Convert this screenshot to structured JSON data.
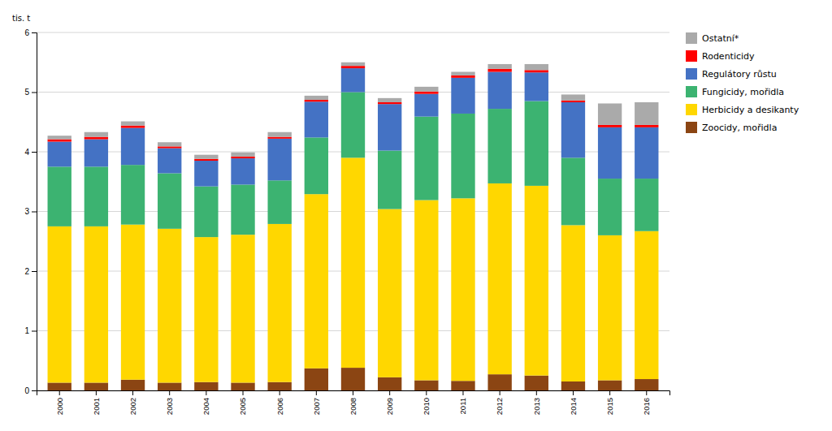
{
  "chart_data": {
    "type": "bar",
    "stacked": true,
    "ylabel": "tis. t",
    "categories": [
      "2000",
      "2001",
      "2002",
      "2003",
      "2004",
      "2005",
      "2006",
      "2007",
      "2008",
      "2009",
      "2010",
      "2011",
      "2012",
      "2013",
      "2014",
      "2015",
      "2016"
    ],
    "series": [
      {
        "name": "Zoocidy, mořidla",
        "color": "#8B4513",
        "values": [
          0.13,
          0.13,
          0.18,
          0.13,
          0.14,
          0.13,
          0.14,
          0.37,
          0.38,
          0.22,
          0.17,
          0.16,
          0.27,
          0.25,
          0.15,
          0.17,
          0.19
        ]
      },
      {
        "name": "Herbicidy a desikanty",
        "color": "#FFD700",
        "values": [
          2.62,
          2.62,
          2.6,
          2.58,
          2.43,
          2.48,
          2.65,
          2.92,
          3.52,
          2.82,
          3.02,
          3.06,
          3.2,
          3.18,
          2.62,
          2.43,
          2.48
        ]
      },
      {
        "name": "Fungicidy, mořidla",
        "color": "#3CB371",
        "values": [
          1.0,
          1.0,
          1.0,
          0.93,
          0.85,
          0.84,
          0.73,
          0.95,
          1.1,
          0.98,
          1.4,
          1.42,
          1.25,
          1.42,
          1.13,
          0.95,
          0.88
        ]
      },
      {
        "name": "Regulátory růstu",
        "color": "#4472C4",
        "values": [
          0.42,
          0.46,
          0.62,
          0.42,
          0.43,
          0.44,
          0.7,
          0.6,
          0.4,
          0.78,
          0.38,
          0.6,
          0.62,
          0.48,
          0.93,
          0.86,
          0.86
        ]
      },
      {
        "name": "Rodenticidy",
        "color": "#FF0000",
        "values": [
          0.04,
          0.04,
          0.04,
          0.03,
          0.03,
          0.03,
          0.03,
          0.03,
          0.04,
          0.03,
          0.04,
          0.04,
          0.05,
          0.04,
          0.03,
          0.04,
          0.04
        ]
      },
      {
        "name": "Ostatní*",
        "color": "#AAAAAA",
        "values": [
          0.06,
          0.08,
          0.07,
          0.07,
          0.07,
          0.07,
          0.08,
          0.07,
          0.06,
          0.07,
          0.08,
          0.06,
          0.08,
          0.1,
          0.1,
          0.36,
          0.38
        ]
      }
    ],
    "ylim": [
      0,
      6
    ],
    "yticks": [
      0,
      1,
      2,
      3,
      4,
      5,
      6
    ],
    "grid": true,
    "legend": "upper right"
  }
}
